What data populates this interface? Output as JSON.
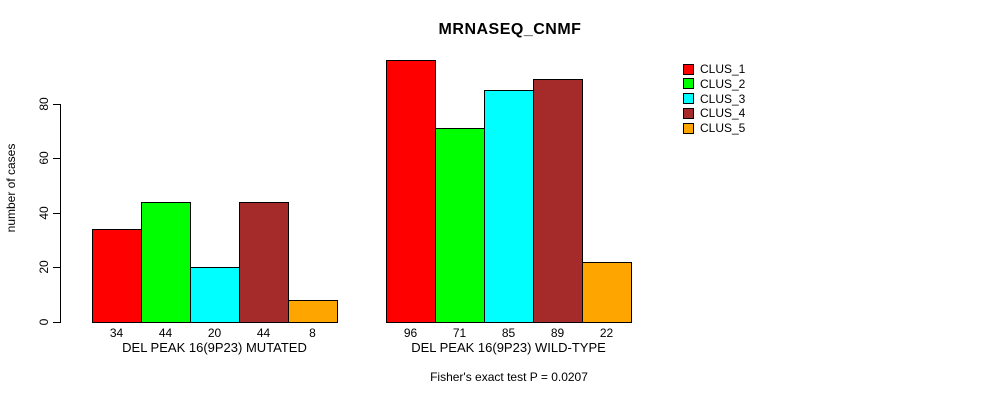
{
  "chart_data": {
    "type": "bar",
    "title": "MRNASEQ_CNMF",
    "ylabel": "number of cases",
    "xlabel": "",
    "ylim": [
      0,
      100
    ],
    "yticks": [
      0,
      20,
      40,
      60,
      80
    ],
    "grid": false,
    "legend_position": "right",
    "series_names": [
      "CLUS_1",
      "CLUS_2",
      "CLUS_3",
      "CLUS_4",
      "CLUS_5"
    ],
    "series_colors": [
      "#ff0000",
      "#00ff00",
      "#00ffff",
      "#a52a2a",
      "#ffa500"
    ],
    "groups": [
      {
        "label": "DEL PEAK 16(9P23) MUTATED",
        "values": [
          34,
          44,
          20,
          44,
          8
        ]
      },
      {
        "label": "DEL PEAK 16(9P23) WILD-TYPE",
        "values": [
          96,
          71,
          85,
          89,
          22
        ]
      }
    ],
    "legend": [
      {
        "label": "CLUS_1",
        "color": "#ff0000"
      },
      {
        "label": "CLUS_2",
        "color": "#00ff00"
      },
      {
        "label": "CLUS_3",
        "color": "#00ffff"
      },
      {
        "label": "CLUS_4",
        "color": "#a52a2a"
      },
      {
        "label": "CLUS_5",
        "color": "#ffa500"
      }
    ],
    "annotation": "Fisher's exact test P = 0.0207"
  },
  "colors": {
    "background": "#ffffff",
    "text": "#000000",
    "bar_border": "#000000"
  }
}
